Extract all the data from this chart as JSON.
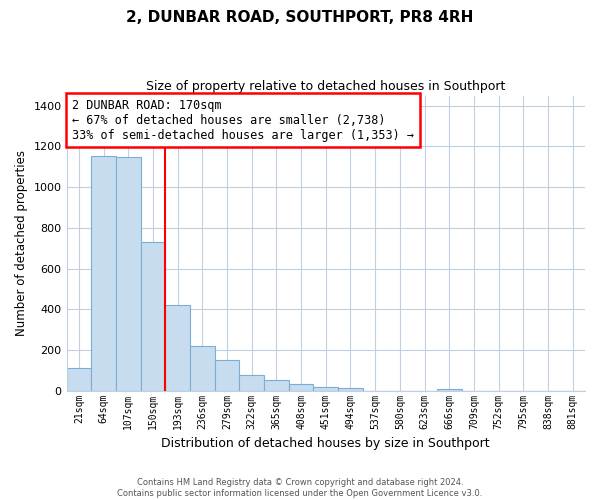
{
  "title": "2, DUNBAR ROAD, SOUTHPORT, PR8 4RH",
  "subtitle": "Size of property relative to detached houses in Southport",
  "xlabel": "Distribution of detached houses by size in Southport",
  "ylabel": "Number of detached properties",
  "bar_labels": [
    "21sqm",
    "64sqm",
    "107sqm",
    "150sqm",
    "193sqm",
    "236sqm",
    "279sqm",
    "322sqm",
    "365sqm",
    "408sqm",
    "451sqm",
    "494sqm",
    "537sqm",
    "580sqm",
    "623sqm",
    "666sqm",
    "709sqm",
    "752sqm",
    "795sqm",
    "838sqm",
    "881sqm"
  ],
  "bar_values": [
    110,
    1155,
    1150,
    730,
    420,
    220,
    150,
    75,
    50,
    35,
    20,
    15,
    0,
    0,
    0,
    10,
    0,
    0,
    0,
    0,
    0
  ],
  "bar_color": "#c8dcf0",
  "bar_edge_color": "#7aaed4",
  "ylim": [
    0,
    1450
  ],
  "yticks": [
    0,
    200,
    400,
    600,
    800,
    1000,
    1200,
    1400
  ],
  "annotation_title": "2 DUNBAR ROAD: 170sqm",
  "annotation_line1": "← 67% of detached houses are smaller (2,738)",
  "annotation_line2": "33% of semi-detached houses are larger (1,353) →",
  "redline_x": 3.5,
  "footer_line1": "Contains HM Land Registry data © Crown copyright and database right 2024.",
  "footer_line2": "Contains public sector information licensed under the Open Government Licence v3.0.",
  "background_color": "#ffffff",
  "grid_color": "#c0d0e0"
}
